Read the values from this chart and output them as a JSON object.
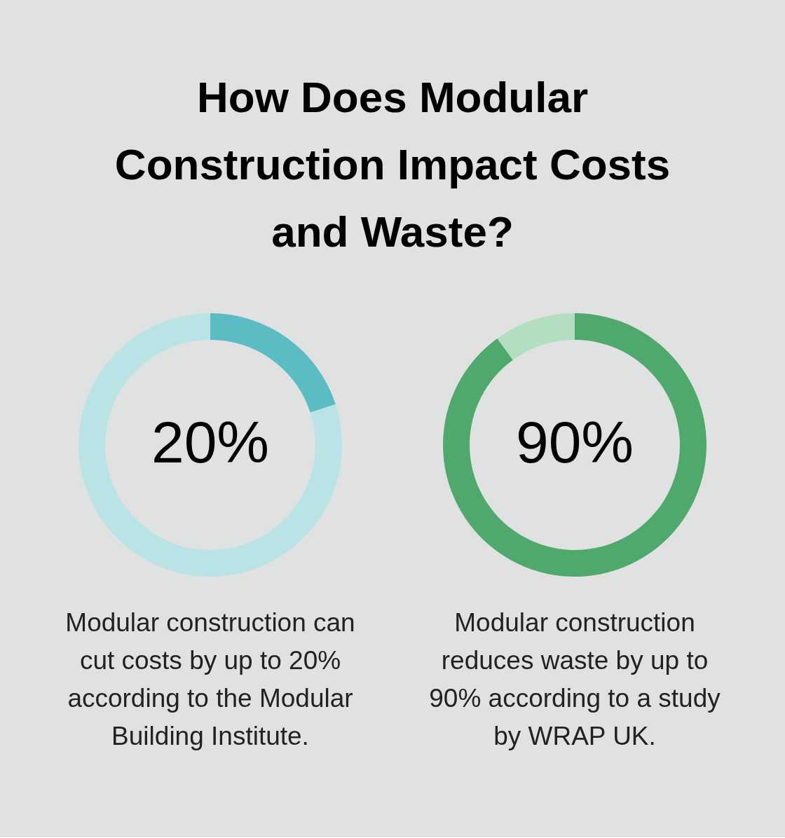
{
  "chart_data": [
    {
      "type": "donut",
      "title": "How Does Modular Construction Impact Costs and Waste?",
      "categories": [
        null,
        null
      ],
      "values": [
        20,
        80
      ],
      "colors": [
        "#5bbcc3",
        "#b9e3e4"
      ],
      "value_labels": [
        "20%",
        null
      ],
      "annotations": [
        "Modular construction can cut costs by up to 20% according to the Modular Building Institute."
      ]
    },
    {
      "type": "donut",
      "categories": [
        null,
        null
      ],
      "values": [
        90,
        10
      ],
      "colors": [
        "#4fa96c",
        "#b3dfc0"
      ],
      "value_labels": [
        "90%",
        null
      ],
      "annotations": [
        "Modular construction reduces waste by up to 90% according to a study by WRAP UK."
      ]
    }
  ]
}
